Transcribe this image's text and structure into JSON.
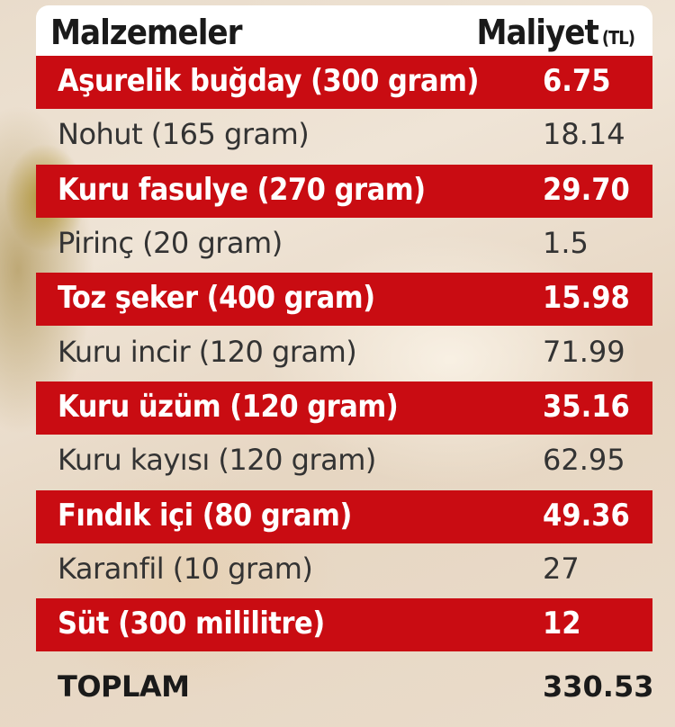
{
  "header": {
    "ingredients": "Malzemeler",
    "cost": "Maliyet",
    "unit": "(TL)"
  },
  "rows": [
    {
      "name": "Aşurelik buğday (300 gram)",
      "cost": "6.75"
    },
    {
      "name": "Nohut (165 gram)",
      "cost": "18.14"
    },
    {
      "name": "Kuru fasulye (270 gram)",
      "cost": "29.70"
    },
    {
      "name": "Pirinç (20 gram)",
      "cost": "1.5"
    },
    {
      "name": "Toz şeker (400 gram)",
      "cost": "15.98"
    },
    {
      "name": "Kuru incir (120 gram)",
      "cost": "71.99"
    },
    {
      "name": "Kuru üzüm (120 gram)",
      "cost": "35.16"
    },
    {
      "name": "Kuru kayısı (120 gram)",
      "cost": "62.95"
    },
    {
      "name": "Fındık içi (80 gram)",
      "cost": "49.36"
    },
    {
      "name": "Karanfil (10 gram)",
      "cost": "27"
    },
    {
      "name": "Süt (300 mililitre)",
      "cost": "12"
    }
  ],
  "total": {
    "label": "TOPLAM",
    "cost": "330.53"
  },
  "colors": {
    "highlight": "#c90c12",
    "text": "#1a1a1a"
  }
}
